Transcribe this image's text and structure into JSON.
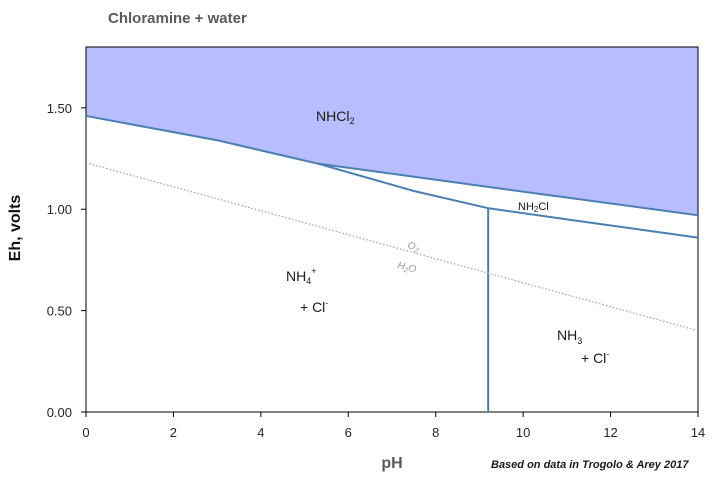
{
  "chart_data": {
    "type": "line",
    "title": "Chloramine  + water",
    "xlabel": "pH",
    "ylabel": "Eh, volts",
    "xlim": [
      0,
      14
    ],
    "ylim": [
      0,
      1.8
    ],
    "x_ticks": [
      0,
      2,
      4,
      6,
      8,
      10,
      12,
      14
    ],
    "y_ticks": [
      0.0,
      0.5,
      1.0,
      1.5
    ],
    "x_tick_labels": [
      "0",
      "2",
      "4",
      "6",
      "8",
      "10",
      "12",
      "14"
    ],
    "y_tick_labels": [
      "0.00",
      "0.50",
      "1.00",
      "1.50"
    ],
    "grid": false,
    "series": [
      {
        "x": [
          0,
          3,
          5.3
        ],
        "y": [
          1.46,
          1.34,
          1.225
        ],
        "color": "#4a7fb5"
      },
      {
        "x": [
          5.3,
          9.2,
          14
        ],
        "y": [
          1.225,
          1.11,
          0.97
        ],
        "color": "#4a7fb5"
      },
      {
        "x": [
          5.3,
          7.5,
          9.2
        ],
        "y": [
          1.225,
          1.09,
          1.005
        ],
        "color": "#4a7fb5"
      },
      {
        "x": [
          9.2,
          11,
          14
        ],
        "y": [
          1.005,
          0.95,
          0.86
        ],
        "color": "#4a7fb5"
      },
      {
        "x": [
          9.2,
          9.2
        ],
        "y": [
          1.005,
          0.0
        ],
        "color": "#4a7fb5"
      },
      {
        "x": [
          0,
          14
        ],
        "y": [
          1.229,
          0.401
        ],
        "color": "#a0a0a0",
        "style": "dotted"
      }
    ],
    "fill": {
      "region": "NHCl2",
      "color": "#b8bdff"
    }
  },
  "regions": {
    "nhcl2": {
      "base": "NHCl",
      "sub": "2"
    },
    "nh2cl": {
      "pre": "NH",
      "sub": "2",
      "post": "Cl"
    },
    "nh4": {
      "base": "NH",
      "sub": "4",
      "sup": "+",
      "line2": "+ Cl",
      "line2_sup": "-"
    },
    "nh3": {
      "base": "NH",
      "sub": "3",
      "line2": "+ Cl",
      "line2_sup": "-"
    }
  },
  "water_line": {
    "o2": "O",
    "o2_sub": "2",
    "h2o_pre": "H",
    "h2o_sub": "2",
    "h2o_post": "O"
  },
  "source_note": "Based on data in Trogolo & Arey 2017"
}
